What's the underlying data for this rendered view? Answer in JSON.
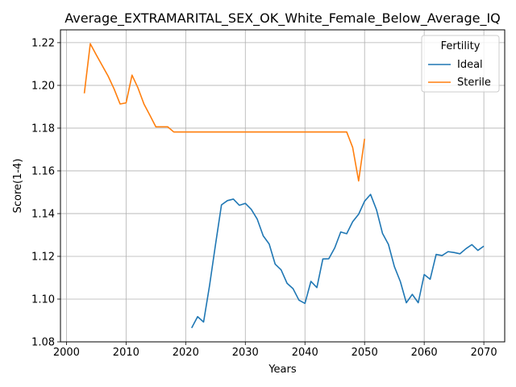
{
  "chart_data": {
    "type": "line",
    "title": "Average_EXTRAMARITAL_SEX_OK_White_Female_Below_Average_IQ",
    "xlabel": "Years",
    "ylabel": "Score(1-4)",
    "xlim": [
      1999,
      2073.5
    ],
    "ylim": [
      1.08,
      1.226
    ],
    "xticks": [
      2000,
      2010,
      2020,
      2030,
      2040,
      2050,
      2060,
      2070
    ],
    "xtick_labels": [
      "2000",
      "2010",
      "2020",
      "2030",
      "2040",
      "2050",
      "2060",
      "2070"
    ],
    "yticks": [
      1.08,
      1.1,
      1.12,
      1.14,
      1.16,
      1.18,
      1.2,
      1.22
    ],
    "ytick_labels": [
      "1.08",
      "1.10",
      "1.12",
      "1.14",
      "1.16",
      "1.18",
      "1.20",
      "1.22"
    ],
    "grid": true,
    "legend": {
      "title": "Fertility",
      "position": "top-right"
    },
    "series": [
      {
        "name": "Ideal",
        "color": "#1f77b4",
        "x": [
          2021,
          2022,
          2023,
          2024,
          2025,
          2026,
          2027,
          2028,
          2029,
          2030,
          2031,
          2032,
          2033,
          2034,
          2035,
          2036,
          2037,
          2038,
          2039,
          2040,
          2041,
          2042,
          2043,
          2044,
          2045,
          2046,
          2047,
          2048,
          2049,
          2050,
          2051,
          2052,
          2053,
          2054,
          2055,
          2056,
          2057,
          2058,
          2059,
          2060,
          2061,
          2062,
          2063,
          2064,
          2065,
          2066,
          2067,
          2068,
          2069,
          2070
        ],
        "y": [
          1.0865,
          1.0918,
          1.0893,
          1.1063,
          1.1255,
          1.1441,
          1.1461,
          1.1468,
          1.1439,
          1.1448,
          1.142,
          1.1374,
          1.1296,
          1.1258,
          1.1164,
          1.1137,
          1.1074,
          1.1049,
          1.0995,
          1.098,
          1.1083,
          1.1054,
          1.1188,
          1.1189,
          1.124,
          1.1314,
          1.1306,
          1.1362,
          1.1397,
          1.1458,
          1.149,
          1.1418,
          1.1308,
          1.1256,
          1.1152,
          1.1082,
          1.0983,
          1.1022,
          1.0983,
          1.1115,
          1.1093,
          1.1209,
          1.1204,
          1.1222,
          1.1218,
          1.1212,
          1.1236,
          1.1255,
          1.1228,
          1.1248
        ]
      },
      {
        "name": "Sterile",
        "color": "#ff7f0e",
        "x": [
          2003,
          2004,
          2005,
          2006,
          2007,
          2008,
          2009,
          2010,
          2011,
          2012,
          2013,
          2014,
          2015,
          2016,
          2017,
          2018,
          2019,
          2020,
          2021,
          2022,
          2023,
          2024,
          2025,
          2026,
          2027,
          2028,
          2029,
          2030,
          2031,
          2032,
          2033,
          2034,
          2035,
          2036,
          2037,
          2038,
          2039,
          2040,
          2041,
          2042,
          2043,
          2044,
          2045,
          2046,
          2047,
          2048,
          2049,
          2050
        ],
        "y": [
          1.1963,
          1.2195,
          1.2143,
          1.2093,
          1.2043,
          1.1983,
          1.1913,
          1.1918,
          1.2048,
          1.1988,
          1.1913,
          1.186,
          1.1806,
          1.1806,
          1.1806,
          1.1782,
          1.1782,
          1.1782,
          1.1782,
          1.1782,
          1.1782,
          1.1782,
          1.1782,
          1.1782,
          1.1782,
          1.1782,
          1.1782,
          1.1782,
          1.1782,
          1.1782,
          1.1782,
          1.1782,
          1.1782,
          1.1782,
          1.1782,
          1.1782,
          1.1782,
          1.1782,
          1.1782,
          1.1782,
          1.1782,
          1.1782,
          1.1782,
          1.1782,
          1.1782,
          1.171,
          1.1553,
          1.175
        ]
      }
    ]
  }
}
